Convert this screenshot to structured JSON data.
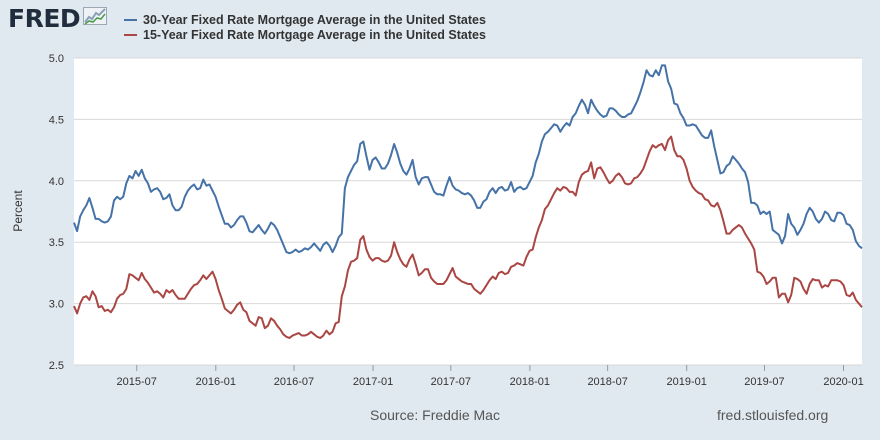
{
  "header": {
    "logo_text": "FRED",
    "logo_icon": "fred-chart-icon"
  },
  "footer": {
    "source": "Source: Freddie Mac",
    "url": "fred.stlouisfed.org"
  },
  "colors": {
    "series_30y": "#4572a7",
    "series_15y": "#aa4643",
    "plot_background": "#ffffff",
    "page_background": "#e1e9f0",
    "grid": "#d8d8d8"
  },
  "chart_data": {
    "type": "line",
    "title": "",
    "xlabel": "",
    "ylabel": "Percent",
    "ylim": [
      2.5,
      5.0
    ],
    "yticks": [
      "2.5",
      "3.0",
      "3.5",
      "4.0",
      "4.5",
      "5.0"
    ],
    "xlim": [
      "2015-02-05",
      "2020-02-13"
    ],
    "xticks": [
      "2015-07",
      "2016-01",
      "2016-07",
      "2017-01",
      "2017-07",
      "2018-01",
      "2018-07",
      "2019-01",
      "2019-07",
      "2020-01"
    ],
    "grid": true,
    "legend": "top-left",
    "frequency": "weekly",
    "series": [
      {
        "name": "30-Year Fixed Rate Mortgage Average in the United States",
        "color": "#4572a7",
        "values": [
          3.66,
          3.59,
          3.71,
          3.76,
          3.8,
          3.86,
          3.78,
          3.69,
          3.69,
          3.67,
          3.66,
          3.67,
          3.71,
          3.84,
          3.87,
          3.85,
          3.87,
          3.98,
          4.04,
          4.02,
          4.08,
          4.04,
          4.09,
          4.02,
          3.98,
          3.91,
          3.93,
          3.94,
          3.91,
          3.85,
          3.86,
          3.89,
          3.8,
          3.76,
          3.76,
          3.79,
          3.87,
          3.92,
          3.95,
          3.97,
          3.93,
          3.94,
          4.01,
          3.96,
          3.97,
          3.92,
          3.87,
          3.79,
          3.72,
          3.65,
          3.65,
          3.62,
          3.64,
          3.68,
          3.71,
          3.71,
          3.66,
          3.59,
          3.58,
          3.61,
          3.64,
          3.6,
          3.57,
          3.61,
          3.66,
          3.64,
          3.6,
          3.54,
          3.48,
          3.42,
          3.41,
          3.42,
          3.44,
          3.42,
          3.43,
          3.45,
          3.44,
          3.46,
          3.49,
          3.46,
          3.43,
          3.48,
          3.5,
          3.47,
          3.42,
          3.47,
          3.54,
          3.57,
          3.94,
          4.03,
          4.08,
          4.13,
          4.16,
          4.3,
          4.32,
          4.2,
          4.09,
          4.17,
          4.19,
          4.15,
          4.1,
          4.1,
          4.14,
          4.21,
          4.3,
          4.23,
          4.14,
          4.08,
          4.05,
          4.1,
          4.17,
          4.03,
          3.97,
          4.02,
          4.03,
          4.03,
          3.97,
          3.91,
          3.89,
          3.89,
          3.88,
          3.96,
          4.03,
          3.96,
          3.93,
          3.92,
          3.9,
          3.89,
          3.9,
          3.88,
          3.84,
          3.78,
          3.78,
          3.83,
          3.85,
          3.91,
          3.94,
          3.9,
          3.94,
          3.95,
          3.92,
          3.93,
          3.99,
          3.91,
          3.94,
          3.95,
          3.93,
          3.94,
          3.99,
          4.04,
          4.15,
          4.22,
          4.32,
          4.38,
          4.4,
          4.43,
          4.46,
          4.45,
          4.4,
          4.44,
          4.47,
          4.45,
          4.52,
          4.55,
          4.61,
          4.66,
          4.62,
          4.55,
          4.66,
          4.61,
          4.57,
          4.54,
          4.52,
          4.53,
          4.59,
          4.59,
          4.57,
          4.54,
          4.52,
          4.52,
          4.54,
          4.55,
          4.6,
          4.65,
          4.72,
          4.8,
          4.9,
          4.86,
          4.85,
          4.9,
          4.86,
          4.94,
          4.94,
          4.81,
          4.75,
          4.63,
          4.62,
          4.55,
          4.51,
          4.45,
          4.45,
          4.46,
          4.45,
          4.41,
          4.37,
          4.35,
          4.35,
          4.41,
          4.28,
          4.17,
          4.06,
          4.07,
          4.12,
          4.14,
          4.2,
          4.17,
          4.14,
          4.1,
          4.07,
          3.99,
          3.82,
          3.82,
          3.8,
          3.73,
          3.75,
          3.73,
          3.75,
          3.6,
          3.58,
          3.56,
          3.49,
          3.55,
          3.73,
          3.65,
          3.62,
          3.56,
          3.6,
          3.65,
          3.73,
          3.78,
          3.75,
          3.69,
          3.66,
          3.69,
          3.75,
          3.73,
          3.68,
          3.67,
          3.74,
          3.74,
          3.72,
          3.65,
          3.64,
          3.6,
          3.51,
          3.47,
          3.45
        ]
      },
      {
        "name": "15-Year Fixed Rate Mortgage Average in the United States",
        "color": "#aa4643",
        "values": [
          2.98,
          2.92,
          3.0,
          3.05,
          3.06,
          3.03,
          3.1,
          3.06,
          2.97,
          2.98,
          2.94,
          2.95,
          2.93,
          2.97,
          3.04,
          3.07,
          3.08,
          3.12,
          3.24,
          3.23,
          3.21,
          3.19,
          3.25,
          3.2,
          3.17,
          3.13,
          3.09,
          3.1,
          3.08,
          3.05,
          3.11,
          3.09,
          3.11,
          3.07,
          3.04,
          3.04,
          3.04,
          3.08,
          3.12,
          3.15,
          3.16,
          3.19,
          3.23,
          3.2,
          3.23,
          3.26,
          3.2,
          3.11,
          3.04,
          2.96,
          2.94,
          2.92,
          2.95,
          2.99,
          3.01,
          2.95,
          2.93,
          2.86,
          2.84,
          2.82,
          2.89,
          2.88,
          2.8,
          2.82,
          2.88,
          2.86,
          2.82,
          2.79,
          2.75,
          2.73,
          2.72,
          2.74,
          2.75,
          2.76,
          2.74,
          2.74,
          2.75,
          2.77,
          2.75,
          2.73,
          2.72,
          2.74,
          2.78,
          2.75,
          2.77,
          2.84,
          2.85,
          3.06,
          3.14,
          3.27,
          3.34,
          3.35,
          3.37,
          3.52,
          3.55,
          3.44,
          3.38,
          3.35,
          3.37,
          3.37,
          3.35,
          3.34,
          3.35,
          3.39,
          3.5,
          3.42,
          3.36,
          3.32,
          3.3,
          3.36,
          3.4,
          3.32,
          3.23,
          3.25,
          3.28,
          3.28,
          3.21,
          3.18,
          3.16,
          3.16,
          3.16,
          3.19,
          3.24,
          3.29,
          3.22,
          3.2,
          3.18,
          3.17,
          3.16,
          3.16,
          3.12,
          3.1,
          3.08,
          3.11,
          3.15,
          3.19,
          3.22,
          3.2,
          3.25,
          3.26,
          3.24,
          3.25,
          3.3,
          3.31,
          3.33,
          3.32,
          3.31,
          3.38,
          3.43,
          3.44,
          3.54,
          3.62,
          3.68,
          3.77,
          3.8,
          3.85,
          3.9,
          3.94,
          3.92,
          3.95,
          3.94,
          3.91,
          3.91,
          3.88,
          3.99,
          4.05,
          4.07,
          4.08,
          4.15,
          4.02,
          4.1,
          4.11,
          4.07,
          4.02,
          3.98,
          4.0,
          4.04,
          4.06,
          4.03,
          3.98,
          3.97,
          3.98,
          4.02,
          4.03,
          4.06,
          4.1,
          4.17,
          4.24,
          4.29,
          4.27,
          4.29,
          4.3,
          4.25,
          4.33,
          4.36,
          4.25,
          4.2,
          4.2,
          4.17,
          4.1,
          4.0,
          3.95,
          3.92,
          3.9,
          3.89,
          3.85,
          3.84,
          3.8,
          3.79,
          3.82,
          3.76,
          3.67,
          3.57,
          3.57,
          3.6,
          3.62,
          3.64,
          3.62,
          3.57,
          3.53,
          3.49,
          3.44,
          3.26,
          3.25,
          3.22,
          3.16,
          3.18,
          3.21,
          3.21,
          3.05,
          3.08,
          3.08,
          3.01,
          3.07,
          3.21,
          3.2,
          3.18,
          3.12,
          3.08,
          3.16,
          3.2,
          3.19,
          3.19,
          3.13,
          3.15,
          3.14,
          3.19,
          3.19,
          3.19,
          3.18,
          3.15,
          3.07,
          3.06,
          3.09,
          3.03,
          3.0,
          2.97
        ]
      }
    ]
  }
}
